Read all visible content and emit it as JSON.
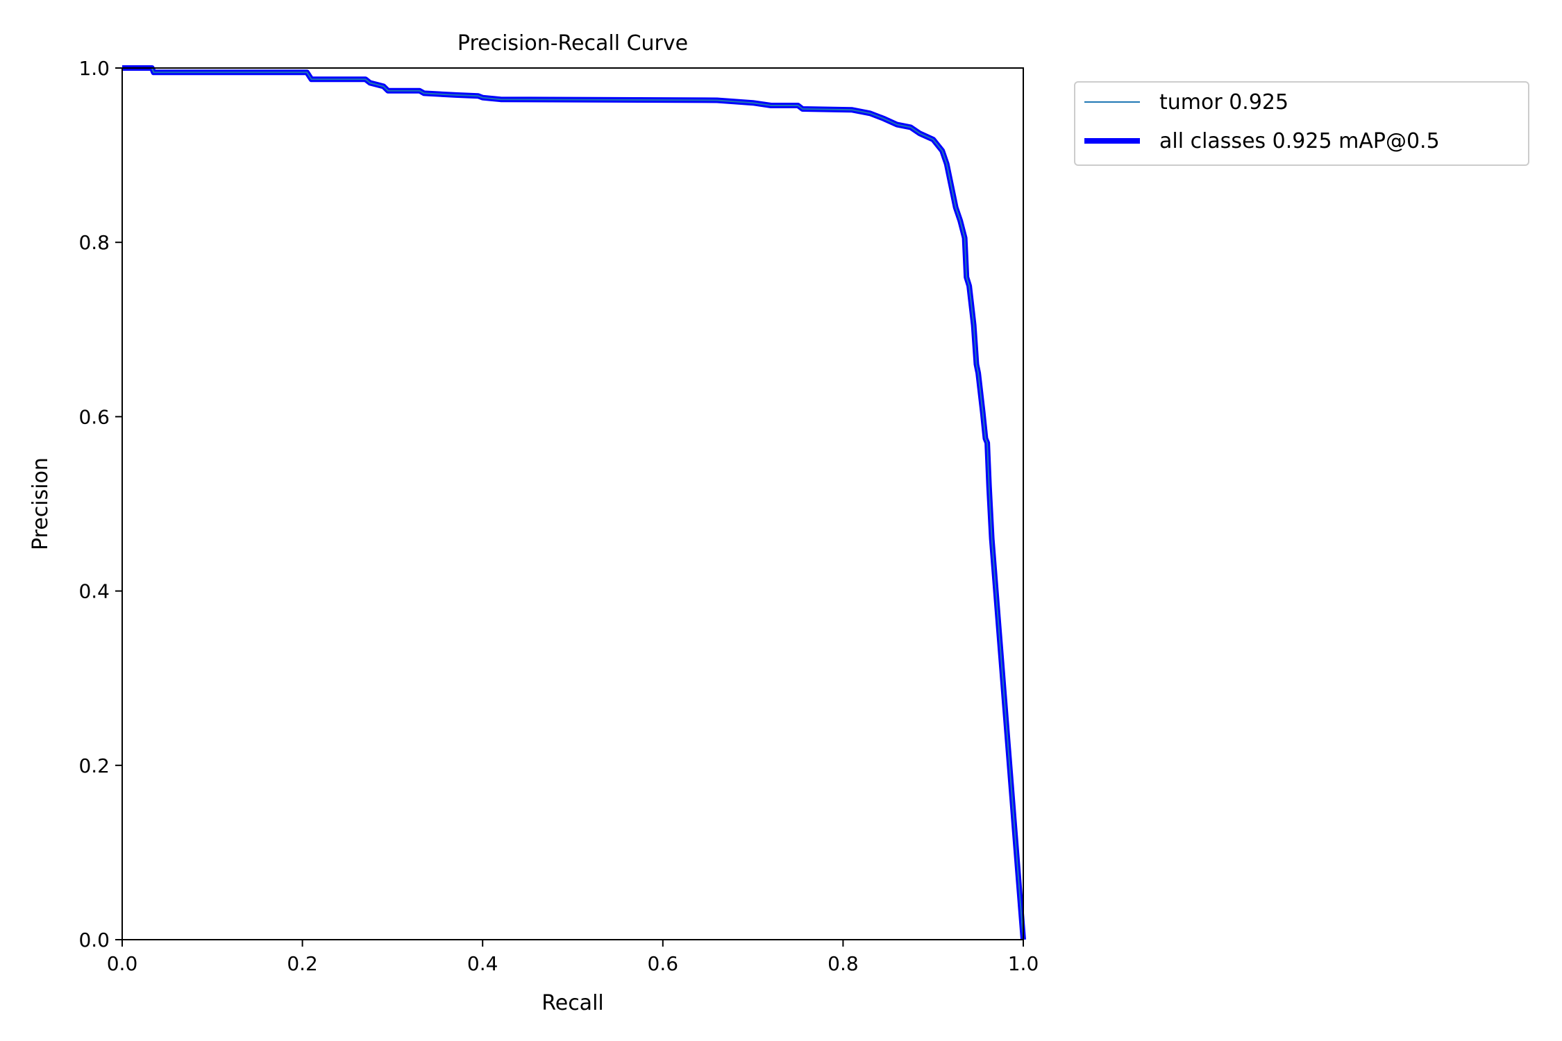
{
  "chart_data": {
    "type": "line",
    "title": "Precision-Recall Curve",
    "xlabel": "Recall",
    "ylabel": "Precision",
    "xlim": [
      0,
      1
    ],
    "ylim": [
      0,
      1
    ],
    "xticks": [
      "0.0",
      "0.2",
      "0.4",
      "0.6",
      "0.8",
      "1.0"
    ],
    "yticks": [
      "0.0",
      "0.2",
      "0.4",
      "0.6",
      "0.8",
      "1.0"
    ],
    "grid": false,
    "legend_position": "outside-top-right",
    "series": [
      {
        "name": "tumor 0.925",
        "color": "#1f77b4",
        "line": "thin"
      },
      {
        "name": "all classes 0.925 mAP@0.5",
        "color": "#0000ff",
        "line": "thick"
      }
    ],
    "points": [
      [
        0,
        1.0
      ],
      [
        0.033,
        1.0
      ],
      [
        0.035,
        0.995
      ],
      [
        0.205,
        0.995
      ],
      [
        0.21,
        0.987
      ],
      [
        0.27,
        0.987
      ],
      [
        0.275,
        0.983
      ],
      [
        0.29,
        0.979
      ],
      [
        0.295,
        0.974
      ],
      [
        0.33,
        0.974
      ],
      [
        0.335,
        0.971
      ],
      [
        0.37,
        0.969
      ],
      [
        0.395,
        0.968
      ],
      [
        0.4,
        0.966
      ],
      [
        0.42,
        0.964
      ],
      [
        0.66,
        0.963
      ],
      [
        0.7,
        0.96
      ],
      [
        0.72,
        0.957
      ],
      [
        0.75,
        0.957
      ],
      [
        0.755,
        0.953
      ],
      [
        0.81,
        0.952
      ],
      [
        0.83,
        0.948
      ],
      [
        0.845,
        0.942
      ],
      [
        0.86,
        0.935
      ],
      [
        0.875,
        0.932
      ],
      [
        0.885,
        0.925
      ],
      [
        0.9,
        0.918
      ],
      [
        0.91,
        0.905
      ],
      [
        0.915,
        0.89
      ],
      [
        0.918,
        0.875
      ],
      [
        0.925,
        0.84
      ],
      [
        0.93,
        0.825
      ],
      [
        0.935,
        0.805
      ],
      [
        0.937,
        0.76
      ],
      [
        0.94,
        0.75
      ],
      [
        0.945,
        0.705
      ],
      [
        0.948,
        0.66
      ],
      [
        0.95,
        0.65
      ],
      [
        0.955,
        0.605
      ],
      [
        0.958,
        0.575
      ],
      [
        0.96,
        0.57
      ],
      [
        0.962,
        0.52
      ],
      [
        0.965,
        0.46
      ],
      [
        1.0,
        0.0
      ]
    ]
  }
}
